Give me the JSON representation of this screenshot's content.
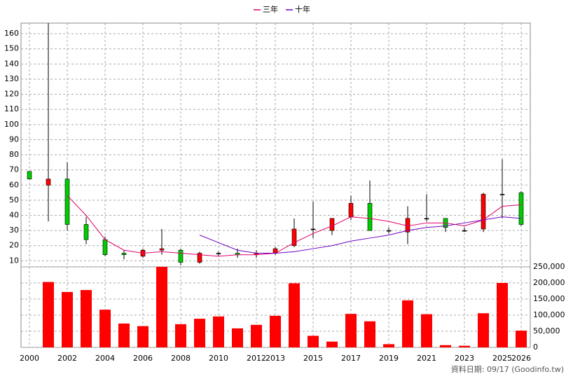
{
  "chart_data": {
    "type": "candlestick",
    "categories": [
      "2000",
      null,
      "2002",
      null,
      "2004",
      null,
      "2006",
      null,
      "2008",
      null,
      "2010",
      null,
      "2012",
      "2013",
      null,
      "2015",
      null,
      "2017",
      null,
      "2019",
      null,
      "2021",
      null,
      "2023",
      null,
      "2025",
      "2026"
    ],
    "ohlc": {
      "open": [
        69,
        60,
        64,
        34,
        24,
        15,
        13,
        17,
        17,
        9,
        15,
        15,
        14,
        15,
        20,
        31,
        30,
        39,
        48,
        30,
        29,
        38,
        38,
        30,
        31,
        54,
        55
      ],
      "high": [
        69,
        167,
        75,
        39,
        26,
        17,
        18,
        31,
        18,
        16,
        16,
        18,
        17,
        19,
        38,
        49,
        38,
        53,
        63,
        32,
        46,
        54,
        38,
        32,
        55,
        77,
        56
      ],
      "low": [
        64,
        36,
        30,
        21,
        13,
        11,
        12,
        14,
        7,
        8,
        13,
        12,
        12,
        14,
        19,
        25,
        27,
        37,
        30,
        28,
        21,
        36,
        29,
        29,
        29,
        38,
        33
      ],
      "close": [
        64,
        64,
        34,
        24,
        14,
        14,
        17,
        18,
        9,
        15,
        15,
        14,
        15,
        18,
        31,
        31,
        38,
        48,
        30,
        30,
        38,
        38,
        32,
        30,
        54,
        54,
        34
      ],
      "up_color": "#ff0000",
      "down_color": "#00cc00"
    },
    "series": [
      {
        "name": "三年",
        "color": "#e0006a",
        "values": [
          null,
          null,
          53,
          40,
          24,
          17,
          15,
          16,
          15,
          14,
          13,
          14,
          14,
          15,
          22,
          28,
          33,
          39,
          38,
          36,
          33,
          35,
          35,
          33,
          37,
          46,
          47
        ]
      },
      {
        "name": "十年",
        "color": "#7000c0",
        "values": [
          null,
          null,
          null,
          null,
          null,
          null,
          null,
          null,
          null,
          27,
          22,
          17,
          15,
          15,
          16,
          18,
          20,
          23,
          25,
          27,
          30,
          32,
          33,
          35,
          37,
          39,
          38
        ]
      }
    ],
    "ylim": [
      6,
      167
    ],
    "yticks": [
      10,
      20,
      30,
      40,
      50,
      60,
      70,
      80,
      90,
      100,
      110,
      120,
      130,
      140,
      150,
      160
    ],
    "volume": {
      "color": "#ff0000",
      "values": [
        0,
        203000,
        172000,
        178000,
        117000,
        74000,
        66000,
        250000,
        72000,
        89000,
        96000,
        59000,
        70000,
        98000,
        199000,
        36000,
        18000,
        104000,
        81000,
        10000,
        146000,
        103000,
        7000,
        5000,
        106000,
        200000,
        52000
      ]
    },
    "y2lim": [
      0,
      250000
    ],
    "y2ticks": [
      0,
      {
        "value": 50000,
        "label": "50,000"
      },
      {
        "value": 100000,
        "label": "100,000"
      },
      {
        "value": 150000,
        "label": "150,000"
      },
      {
        "value": 200000,
        "label": "200,000"
      },
      {
        "value": 250000,
        "label": "250,000"
      }
    ],
    "grid": true,
    "source": "資料日期: 09/17  (Goodinfo.tw)"
  }
}
